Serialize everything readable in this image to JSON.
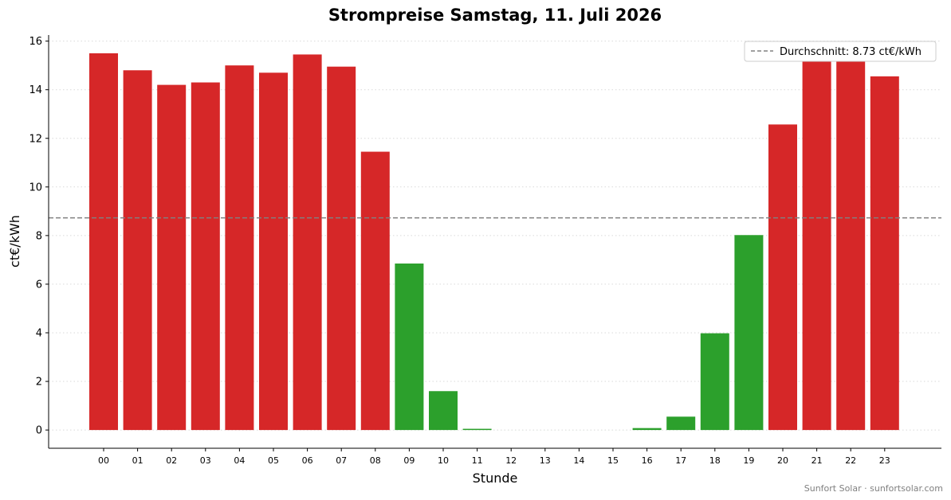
{
  "chart_data": {
    "type": "bar",
    "title": "Strompreise Samstag, 11. Juli 2026",
    "xlabel": "Stunde",
    "ylabel": "ct€/kWh",
    "ylim": [
      -0.75,
      16.25
    ],
    "yticks": [
      0,
      2,
      4,
      6,
      8,
      10,
      12,
      14,
      16
    ],
    "categories": [
      "00",
      "01",
      "02",
      "03",
      "04",
      "05",
      "06",
      "07",
      "08",
      "09",
      "10",
      "11",
      "12",
      "13",
      "14",
      "15",
      "16",
      "17",
      "18",
      "19",
      "20",
      "21",
      "22",
      "23"
    ],
    "values": [
      15.5,
      14.8,
      14.2,
      14.3,
      15.0,
      14.7,
      15.45,
      14.95,
      11.45,
      6.85,
      1.6,
      0.05,
      0.0,
      0.0,
      0.0,
      0.0,
      0.08,
      0.55,
      3.98,
      8.02,
      12.57,
      15.35,
      15.38,
      14.55
    ],
    "average": 8.73,
    "legend": {
      "label": "Durchschnitt: 8.73 ct€/kWh",
      "position": "top-right"
    },
    "grid": "horizontal-dotted",
    "colors": {
      "above_average": "#d62728",
      "below_average": "#2ca02c",
      "average_line": "#808080"
    }
  },
  "footer": "Sunfort Solar · sunfortsolar.com"
}
